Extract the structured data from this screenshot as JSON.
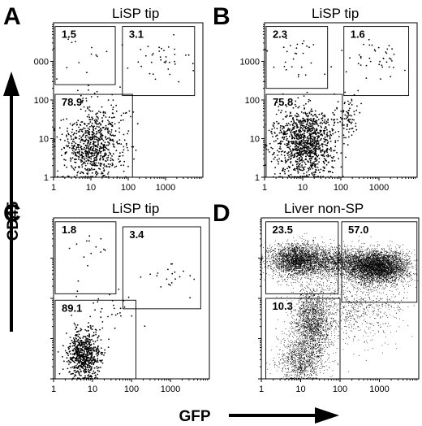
{
  "figure": {
    "y_axis_title": "CD45",
    "x_axis_title": "GFP"
  },
  "chart_data": [
    {
      "panel": "A",
      "type": "scatter",
      "title": "LiSP tip",
      "xscale": "log",
      "yscale": "log",
      "xlim": [
        1,
        10000
      ],
      "ylim": [
        1,
        10000
      ],
      "x_ticks": [
        "1",
        "10",
        "100",
        "1000"
      ],
      "y_ticks": [
        "1",
        "10",
        "100",
        "000"
      ],
      "gates": [
        {
          "label": "1.5",
          "x": [
            1.1,
            45
          ],
          "y": [
            250,
            8000
          ]
        },
        {
          "label": "3.1",
          "x": [
            70,
            6000
          ],
          "y": [
            130,
            8000
          ]
        },
        {
          "label": "78.9",
          "x": [
            1.1,
            130
          ],
          "y": [
            1,
            140
          ]
        }
      ],
      "populations": [
        {
          "cx": 11,
          "cy": 6,
          "sx": 0.4,
          "sy": 0.42,
          "n": 720
        },
        {
          "cx": 25,
          "cy": 45,
          "sx": 0.45,
          "sy": 0.3,
          "n": 60
        },
        {
          "cx": 700,
          "cy": 900,
          "sx": 0.4,
          "sy": 0.3,
          "n": 36
        },
        {
          "cx": 8,
          "cy": 1100,
          "sx": 0.45,
          "sy": 0.3,
          "n": 14
        }
      ]
    },
    {
      "panel": "B",
      "type": "scatter",
      "title": "LiSP tip",
      "xscale": "log",
      "yscale": "log",
      "xlim": [
        1,
        10000
      ],
      "ylim": [
        1,
        10000
      ],
      "x_ticks": [
        "1",
        "10",
        "100",
        "1000"
      ],
      "y_ticks": [
        "1",
        "10",
        "100",
        "1000"
      ],
      "gates": [
        {
          "label": "2.3",
          "x": [
            1.1,
            45
          ],
          "y": [
            200,
            8000
          ]
        },
        {
          "label": "1.6",
          "x": [
            120,
            6000
          ],
          "y": [
            130,
            8000
          ]
        },
        {
          "label": "75.8",
          "x": [
            1.1,
            110
          ],
          "y": [
            1,
            140
          ]
        }
      ],
      "populations": [
        {
          "cx": 12,
          "cy": 8,
          "sx": 0.42,
          "sy": 0.45,
          "n": 1100
        },
        {
          "cx": 150,
          "cy": 40,
          "sx": 0.18,
          "sy": 0.25,
          "n": 80
        },
        {
          "cx": 700,
          "cy": 900,
          "sx": 0.35,
          "sy": 0.3,
          "n": 40
        },
        {
          "cx": 6,
          "cy": 1200,
          "sx": 0.45,
          "sy": 0.35,
          "n": 30
        }
      ]
    },
    {
      "panel": "C",
      "type": "scatter",
      "title": "LiSP tip",
      "xscale": "log",
      "yscale": "log",
      "xlim": [
        1,
        10000
      ],
      "ylim": [
        1,
        10000
      ],
      "x_ticks": [
        "1",
        "10",
        "100",
        "1000"
      ],
      "y_ticks": [],
      "gates": [
        {
          "label": "1.8",
          "x": [
            1.1,
            40
          ],
          "y": [
            130,
            8000
          ]
        },
        {
          "label": "3.4",
          "x": [
            60,
            6000
          ],
          "y": [
            55,
            6000
          ]
        },
        {
          "label": "89.1",
          "x": [
            1.1,
            130
          ],
          "y": [
            1,
            90
          ]
        }
      ],
      "populations": [
        {
          "cx": 6,
          "cy": 4,
          "sx": 0.22,
          "sy": 0.3,
          "n": 650
        },
        {
          "cx": 30,
          "cy": 50,
          "sx": 0.4,
          "sy": 0.3,
          "n": 30
        },
        {
          "cx": 1200,
          "cy": 400,
          "sx": 0.3,
          "sy": 0.25,
          "n": 20
        },
        {
          "cx": 8,
          "cy": 1200,
          "sx": 0.35,
          "sy": 0.3,
          "n": 14
        }
      ]
    },
    {
      "panel": "D",
      "type": "scatter",
      "title": "Liver non-SP",
      "xscale": "log",
      "yscale": "log",
      "xlim": [
        1,
        10000
      ],
      "ylim": [
        1,
        10000
      ],
      "x_ticks": [
        "1",
        "10",
        "100",
        "1000"
      ],
      "y_ticks": [],
      "gates": [
        {
          "label": "23.5",
          "x": [
            1.3,
            90
          ],
          "y": [
            130,
            8000
          ]
        },
        {
          "label": "57.0",
          "x": [
            110,
            9000
          ],
          "y": [
            80,
            8000
          ]
        },
        {
          "label": "10.3",
          "x": [
            1.3,
            100
          ],
          "y": [
            1,
            100
          ]
        }
      ],
      "populations": [
        {
          "cx": 8,
          "cy": 900,
          "sx": 0.35,
          "sy": 0.2,
          "n": 2600
        },
        {
          "cx": 900,
          "cy": 600,
          "sx": 0.4,
          "sy": 0.2,
          "n": 4200
        },
        {
          "cx": 80,
          "cy": 800,
          "sx": 0.45,
          "sy": 0.18,
          "n": 1400
        },
        {
          "cx": 20,
          "cy": 25,
          "sx": 0.25,
          "sy": 0.45,
          "n": 1800
        },
        {
          "cx": 10,
          "cy": 3,
          "sx": 0.28,
          "sy": 0.3,
          "n": 900
        },
        {
          "cx": 300,
          "cy": 60,
          "sx": 0.55,
          "sy": 0.45,
          "n": 700
        }
      ]
    }
  ]
}
